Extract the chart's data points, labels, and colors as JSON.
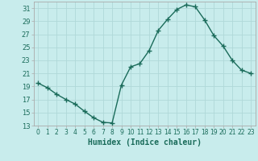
{
  "x": [
    0,
    1,
    2,
    3,
    4,
    5,
    6,
    7,
    8,
    9,
    10,
    11,
    12,
    13,
    14,
    15,
    16,
    17,
    18,
    19,
    20,
    21,
    22,
    23
  ],
  "y": [
    19.5,
    18.8,
    17.8,
    17.0,
    16.3,
    15.2,
    14.2,
    13.5,
    13.4,
    19.2,
    22.0,
    22.5,
    24.5,
    27.6,
    29.3,
    30.8,
    31.5,
    31.2,
    29.2,
    26.8,
    25.2,
    23.0,
    21.5,
    21.0
  ],
  "line_color": "#1a6b5a",
  "marker": "+",
  "marker_size": 4,
  "xlabel": "Humidex (Indice chaleur)",
  "bg_color": "#c8ecec",
  "grid_color": "#b0d8d8",
  "spine_color": "#aaaaaa",
  "ylim": [
    13,
    32
  ],
  "xlim": [
    -0.5,
    23.5
  ],
  "yticks": [
    13,
    15,
    17,
    19,
    21,
    23,
    25,
    27,
    29,
    31
  ],
  "xticks": [
    0,
    1,
    2,
    3,
    4,
    5,
    6,
    7,
    8,
    9,
    10,
    11,
    12,
    13,
    14,
    15,
    16,
    17,
    18,
    19,
    20,
    21,
    22,
    23
  ]
}
